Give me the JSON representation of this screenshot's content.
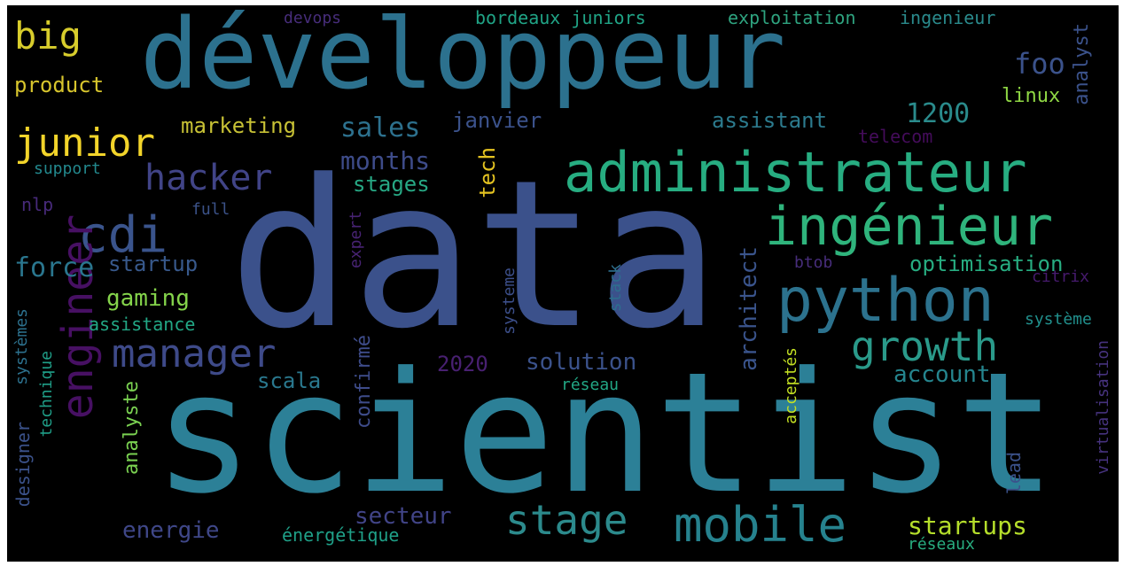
{
  "palette": {
    "purple_dark": "#440154",
    "purple": "#472c7a",
    "indigo": "#3b518b",
    "blue": "#2c718e",
    "teal": "#21908d",
    "green": "#27ad81",
    "lime": "#5cc863",
    "yellow_green": "#aadc32",
    "yellow": "#fde725"
  },
  "words": [
    {
      "text": "data",
      "color": "#3b518b"
    },
    {
      "text": "scientist",
      "color": "#2c8097"
    },
    {
      "text": "développeur",
      "color": "#2c718e"
    },
    {
      "text": "administrateur",
      "color": "#27ad81"
    },
    {
      "text": "ingénieur",
      "color": "#2fb47c"
    },
    {
      "text": "python",
      "color": "#2c728e"
    },
    {
      "text": "mobile",
      "color": "#26828e"
    },
    {
      "text": "stage",
      "color": "#2c8a8c"
    },
    {
      "text": "growth",
      "color": "#2a9a8a"
    },
    {
      "text": "manager",
      "color": "#3e4a89"
    },
    {
      "text": "cdi",
      "color": "#3a548c"
    },
    {
      "text": "engineer",
      "color": "#471063"
    },
    {
      "text": "hacker",
      "color": "#414487"
    },
    {
      "text": "junior",
      "color": "#f2d42a"
    },
    {
      "text": "big",
      "color": "#d8cd2c"
    },
    {
      "text": "product",
      "color": "#d7c52d"
    },
    {
      "text": "marketing",
      "color": "#c7c135"
    },
    {
      "text": "sales",
      "color": "#2d718e"
    },
    {
      "text": "janvier",
      "color": "#3b528b"
    },
    {
      "text": "assistant",
      "color": "#2c7b8e"
    },
    {
      "text": "1200",
      "color": "#2a8b8c"
    },
    {
      "text": "foo",
      "color": "#3b528b"
    },
    {
      "text": "analyst",
      "color": "#3b528b"
    },
    {
      "text": "linux",
      "color": "#8fd744"
    },
    {
      "text": "telecom",
      "color": "#440c5a"
    },
    {
      "text": "devops",
      "color": "#472d7b"
    },
    {
      "text": "bordeaux",
      "color": "#20a486"
    },
    {
      "text": "juniors",
      "color": "#22a785"
    },
    {
      "text": "exploitation",
      "color": "#2ea37f"
    },
    {
      "text": "ingenieur",
      "color": "#2a8a8c"
    },
    {
      "text": "support",
      "color": "#23898e"
    },
    {
      "text": "months",
      "color": "#3e4c8a"
    },
    {
      "text": "tech",
      "color": "#e4c321"
    },
    {
      "text": "stages",
      "color": "#27a884"
    },
    {
      "text": "nlp",
      "color": "#472a7a"
    },
    {
      "text": "full",
      "color": "#3b5288"
    },
    {
      "text": "force",
      "color": "#2a768e"
    },
    {
      "text": "startup",
      "color": "#38598c"
    },
    {
      "text": "gaming",
      "color": "#84d44b"
    },
    {
      "text": "assistance",
      "color": "#22a785"
    },
    {
      "text": "expert",
      "color": "#482374"
    },
    {
      "text": "systeme",
      "color": "#3c4f8a"
    },
    {
      "text": "stack",
      "color": "#2d6e8e"
    },
    {
      "text": "architect",
      "color": "#3a548c"
    },
    {
      "text": "btob",
      "color": "#472d7b"
    },
    {
      "text": "optimisation",
      "color": "#27ad81"
    },
    {
      "text": "citrix",
      "color": "#461a6d"
    },
    {
      "text": "système",
      "color": "#21908d"
    },
    {
      "text": "solution",
      "color": "#3b528b"
    },
    {
      "text": "2020",
      "color": "#482071"
    },
    {
      "text": "scala",
      "color": "#2a788e"
    },
    {
      "text": "confirmé",
      "color": "#3e4c8a"
    },
    {
      "text": "réseau",
      "color": "#22a785"
    },
    {
      "text": "account",
      "color": "#25858e"
    },
    {
      "text": "analyste",
      "color": "#7ad151"
    },
    {
      "text": "technique",
      "color": "#1f9f88"
    },
    {
      "text": "systèmes",
      "color": "#2c718e"
    },
    {
      "text": "designer",
      "color": "#3b528b"
    },
    {
      "text": "acceptés",
      "color": "#c2df23"
    },
    {
      "text": "lead",
      "color": "#3b528b"
    },
    {
      "text": "virtualisation",
      "color": "#46327e"
    },
    {
      "text": "secteur",
      "color": "#414487"
    },
    {
      "text": "energie",
      "color": "#3f4788"
    },
    {
      "text": "énergétique",
      "color": "#1fa088"
    },
    {
      "text": "startups",
      "color": "#b5de2b"
    },
    {
      "text": "réseaux",
      "color": "#28ae80"
    }
  ]
}
